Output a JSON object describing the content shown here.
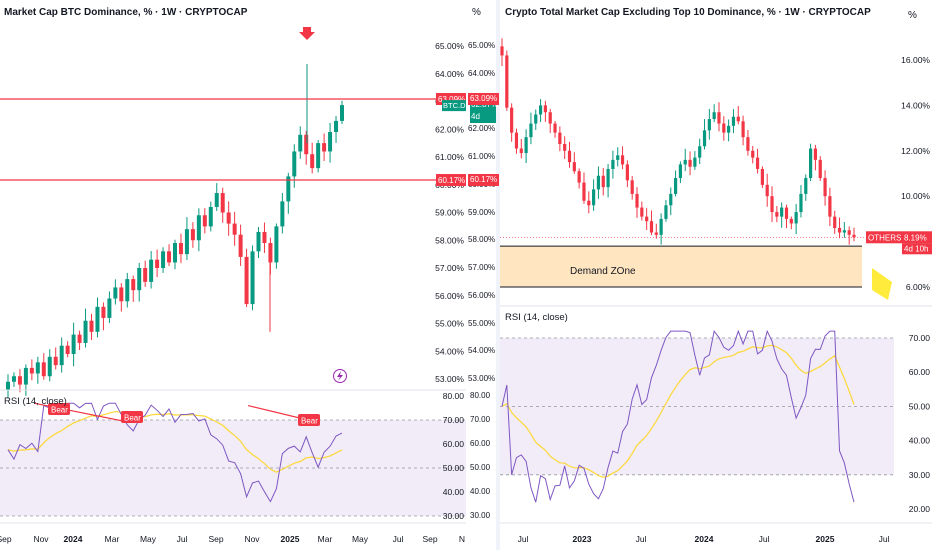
{
  "left": {
    "title": "Market Cap BTC Dominance, % · 1W · CRYPTOCAP",
    "unit_button": "%",
    "price_ticks": [
      "65.00%",
      "64.00%",
      "63.00%",
      "62.00%",
      "61.00%",
      "60.00%",
      "59.00%",
      "58.00%",
      "57.00%",
      "56.00%",
      "55.00%",
      "54.00%",
      "53.00%"
    ],
    "level_labels": [
      {
        "text": "63.09%",
        "value": 63.09,
        "color": "#f23645"
      },
      {
        "text": "60.17%",
        "value": 60.17,
        "color": "#f23645"
      }
    ],
    "symbol_tag": {
      "symbol": "BTC.D",
      "value": "62.87%",
      "countdown": "4d 10h",
      "color": "#089981"
    },
    "rsi_title": "RSI (14, close)",
    "rsi_ticks": [
      "80.00",
      "70.00",
      "60.00",
      "50.00",
      "40.00",
      "30.00"
    ],
    "bear_labels": [
      "Bear",
      "Bear",
      "Bear"
    ],
    "time_labels": [
      "Sep",
      "Nov",
      "2024",
      "Mar",
      "May",
      "Jul",
      "Sep",
      "Nov",
      "2025",
      "Mar",
      "May",
      "Jul",
      "Sep",
      "N"
    ],
    "arrow_icon": "down-arrow-icon",
    "flash_icon": "lightning-icon"
  },
  "right": {
    "title": "Crypto Total Market Cap Excluding Top 10 Dominance, % · 1W · CRYPTOCAP",
    "unit_button": "%",
    "price_ticks": [
      "16.00%",
      "14.00%",
      "12.00%",
      "10.00%",
      "8.00%",
      "6.00%"
    ],
    "symbol_tag": {
      "symbol": "OTHERS.D",
      "value": "8.19%",
      "countdown": "4d 10h",
      "color": "#f23645"
    },
    "zone_label": "Demand ZOne",
    "rsi_title": "RSI (14, close)",
    "rsi_ticks": [
      "70.00",
      "60.00",
      "50.00",
      "40.00",
      "30.00",
      "20.00"
    ],
    "time_labels": [
      "Jul",
      "2023",
      "Jul",
      "2024",
      "Jul",
      "2025",
      "Jul"
    ]
  },
  "chart_data": [
    {
      "type": "candlestick",
      "title": "Market Cap BTC Dominance, % · 1W · CRYPTOCAP",
      "y_unit": "%",
      "ylim": [
        52.6,
        65.5
      ],
      "levels": [
        63.09,
        60.17
      ],
      "last_value": 62.87,
      "close_approx": [
        52.9,
        53.1,
        52.8,
        53.4,
        53.2,
        53.6,
        53.1,
        53.8,
        53.5,
        54.2,
        53.9,
        54.6,
        54.3,
        55.1,
        54.7,
        55.6,
        55.2,
        55.9,
        56.3,
        55.8,
        56.6,
        56.2,
        57.0,
        56.5,
        57.3,
        57.0,
        57.6,
        57.2,
        57.9,
        57.5,
        58.4,
        58.0,
        58.9,
        58.5,
        59.2,
        59.7,
        59.0,
        58.6,
        58.2,
        57.4,
        55.7,
        57.6,
        58.3,
        57.9,
        57.2,
        58.5,
        59.4,
        60.3,
        61.2,
        61.8,
        61.1,
        60.6,
        61.5,
        61.2,
        61.9,
        62.3,
        62.87
      ],
      "rsi": {
        "title": "RSI (14, close)",
        "ylim": [
          28,
          82
        ],
        "bands": [
          30,
          70
        ],
        "annotations": [
          "Bear",
          "Bear",
          "Bear"
        ]
      }
    },
    {
      "type": "candlestick",
      "title": "Crypto Total Market Cap Excluding Top 10 Dominance, % · 1W · CRYPTOCAP",
      "y_unit": "%",
      "ylim": [
        5.6,
        16.6
      ],
      "last_value": 8.19,
      "zone": {
        "label": "Demand ZOne",
        "from": 6.0,
        "to": 7.8
      },
      "close_approx": [
        16.2,
        13.9,
        12.8,
        12.1,
        11.9,
        12.6,
        13.2,
        13.6,
        14.0,
        13.7,
        13.2,
        12.8,
        12.3,
        12.0,
        11.5,
        11.1,
        10.6,
        9.8,
        9.6,
        10.3,
        10.9,
        10.4,
        11.2,
        11.6,
        11.8,
        11.4,
        10.7,
        10.1,
        9.5,
        9.1,
        8.9,
        8.4,
        8.3,
        9.0,
        9.6,
        10.1,
        10.8,
        11.4,
        11.6,
        11.3,
        11.7,
        12.2,
        12.9,
        13.4,
        13.7,
        13.2,
        12.8,
        13.1,
        13.5,
        13.3,
        12.6,
        12.0,
        11.7,
        11.2,
        10.5,
        10.0,
        9.3,
        9.1,
        9.5,
        9.0,
        8.8,
        9.3,
        10.1,
        10.8,
        12.1,
        11.6,
        10.8,
        10.0,
        9.1,
        8.6,
        8.4,
        8.5,
        8.3,
        8.19
      ],
      "rsi": {
        "title": "RSI (14, close)",
        "ylim": [
          18,
          73
        ],
        "bands": [
          30,
          70
        ]
      }
    }
  ]
}
